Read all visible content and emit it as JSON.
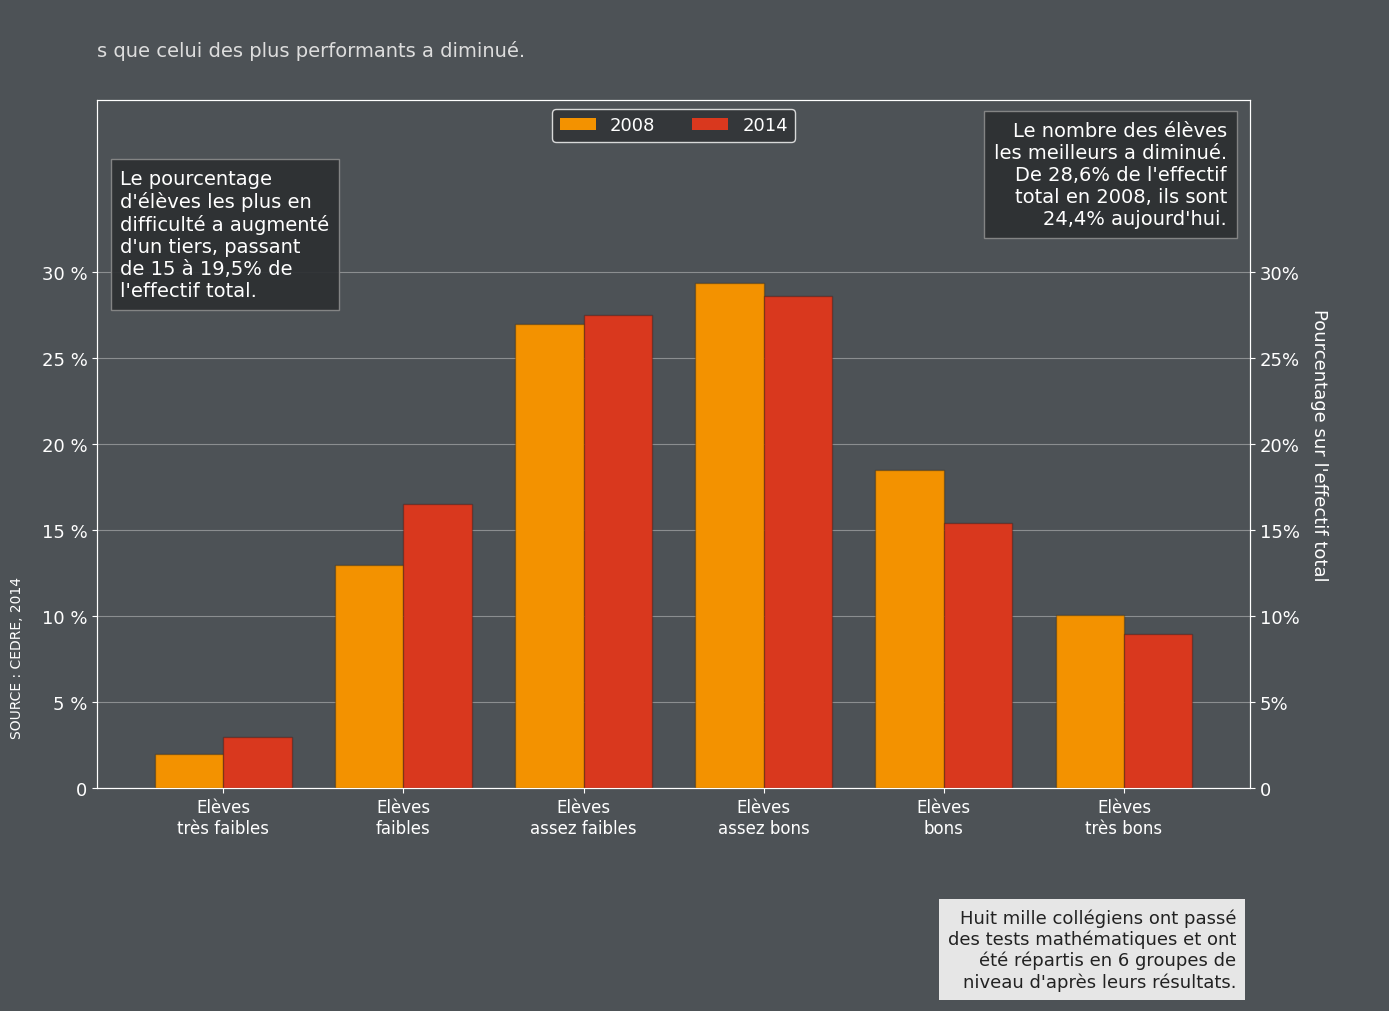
{
  "chart_data": {
    "type": "bar",
    "subtitle": "s que celui des plus performants a diminué.",
    "categories": [
      "Elèves\ntrès faibles",
      "Elèves\nfaibles",
      "Elèves\nassez faibles",
      "Elèves\nassez bons",
      "Elèves\nbons",
      "Elèves\ntrès bons"
    ],
    "series": [
      {
        "name": "2008",
        "color": "#f39200",
        "values": [
          2.0,
          13.0,
          27.0,
          29.4,
          18.5,
          10.1
        ]
      },
      {
        "name": "2014",
        "color": "#d9381e",
        "values": [
          3.0,
          16.5,
          27.5,
          28.6,
          15.4,
          9.0
        ]
      }
    ],
    "ylim": [
      0,
      40
    ],
    "yticks": [
      0,
      {
        "value": 5,
        "label": "5 %"
      },
      {
        "value": 10,
        "label": "10 %"
      },
      {
        "value": 15,
        "label": "15 %"
      },
      {
        "value": 20,
        "label": "20 %"
      },
      {
        "value": 25,
        "label": "25 %"
      },
      {
        "value": 30,
        "label": "30 %"
      }
    ],
    "y2lim": [
      0,
      40
    ],
    "y2ticks": [
      0,
      {
        "value": 5,
        "label": "5%"
      },
      {
        "value": 10,
        "label": "10%"
      },
      {
        "value": 15,
        "label": "15%"
      },
      {
        "value": 20,
        "label": "20%"
      },
      {
        "value": 25,
        "label": "25%"
      },
      {
        "value": 30,
        "label": "30%"
      }
    ],
    "y2_label": "Pourcentage sur l'effectif total",
    "legend": "upper center",
    "grid": true,
    "annotations": [
      "Le pourcentage\nd'élèves les plus en\ndifficulté a augmenté\nd'un tiers, passant\nde 15 à 19,5% de\nl'effectif total.",
      "Le nombre des élèves\nles meilleurs a diminué.\nDe 28,6% de l'effectif\ntotal en 2008, ils sont\n24,4% aujourd'hui.",
      "Huit mille collégiens ont passé\ndes tests mathématiques et ont\nété répartis en 6 groupes de\nniveau d'après leurs résultats."
    ],
    "source": "SOURCE : CEDRE, 2014"
  }
}
